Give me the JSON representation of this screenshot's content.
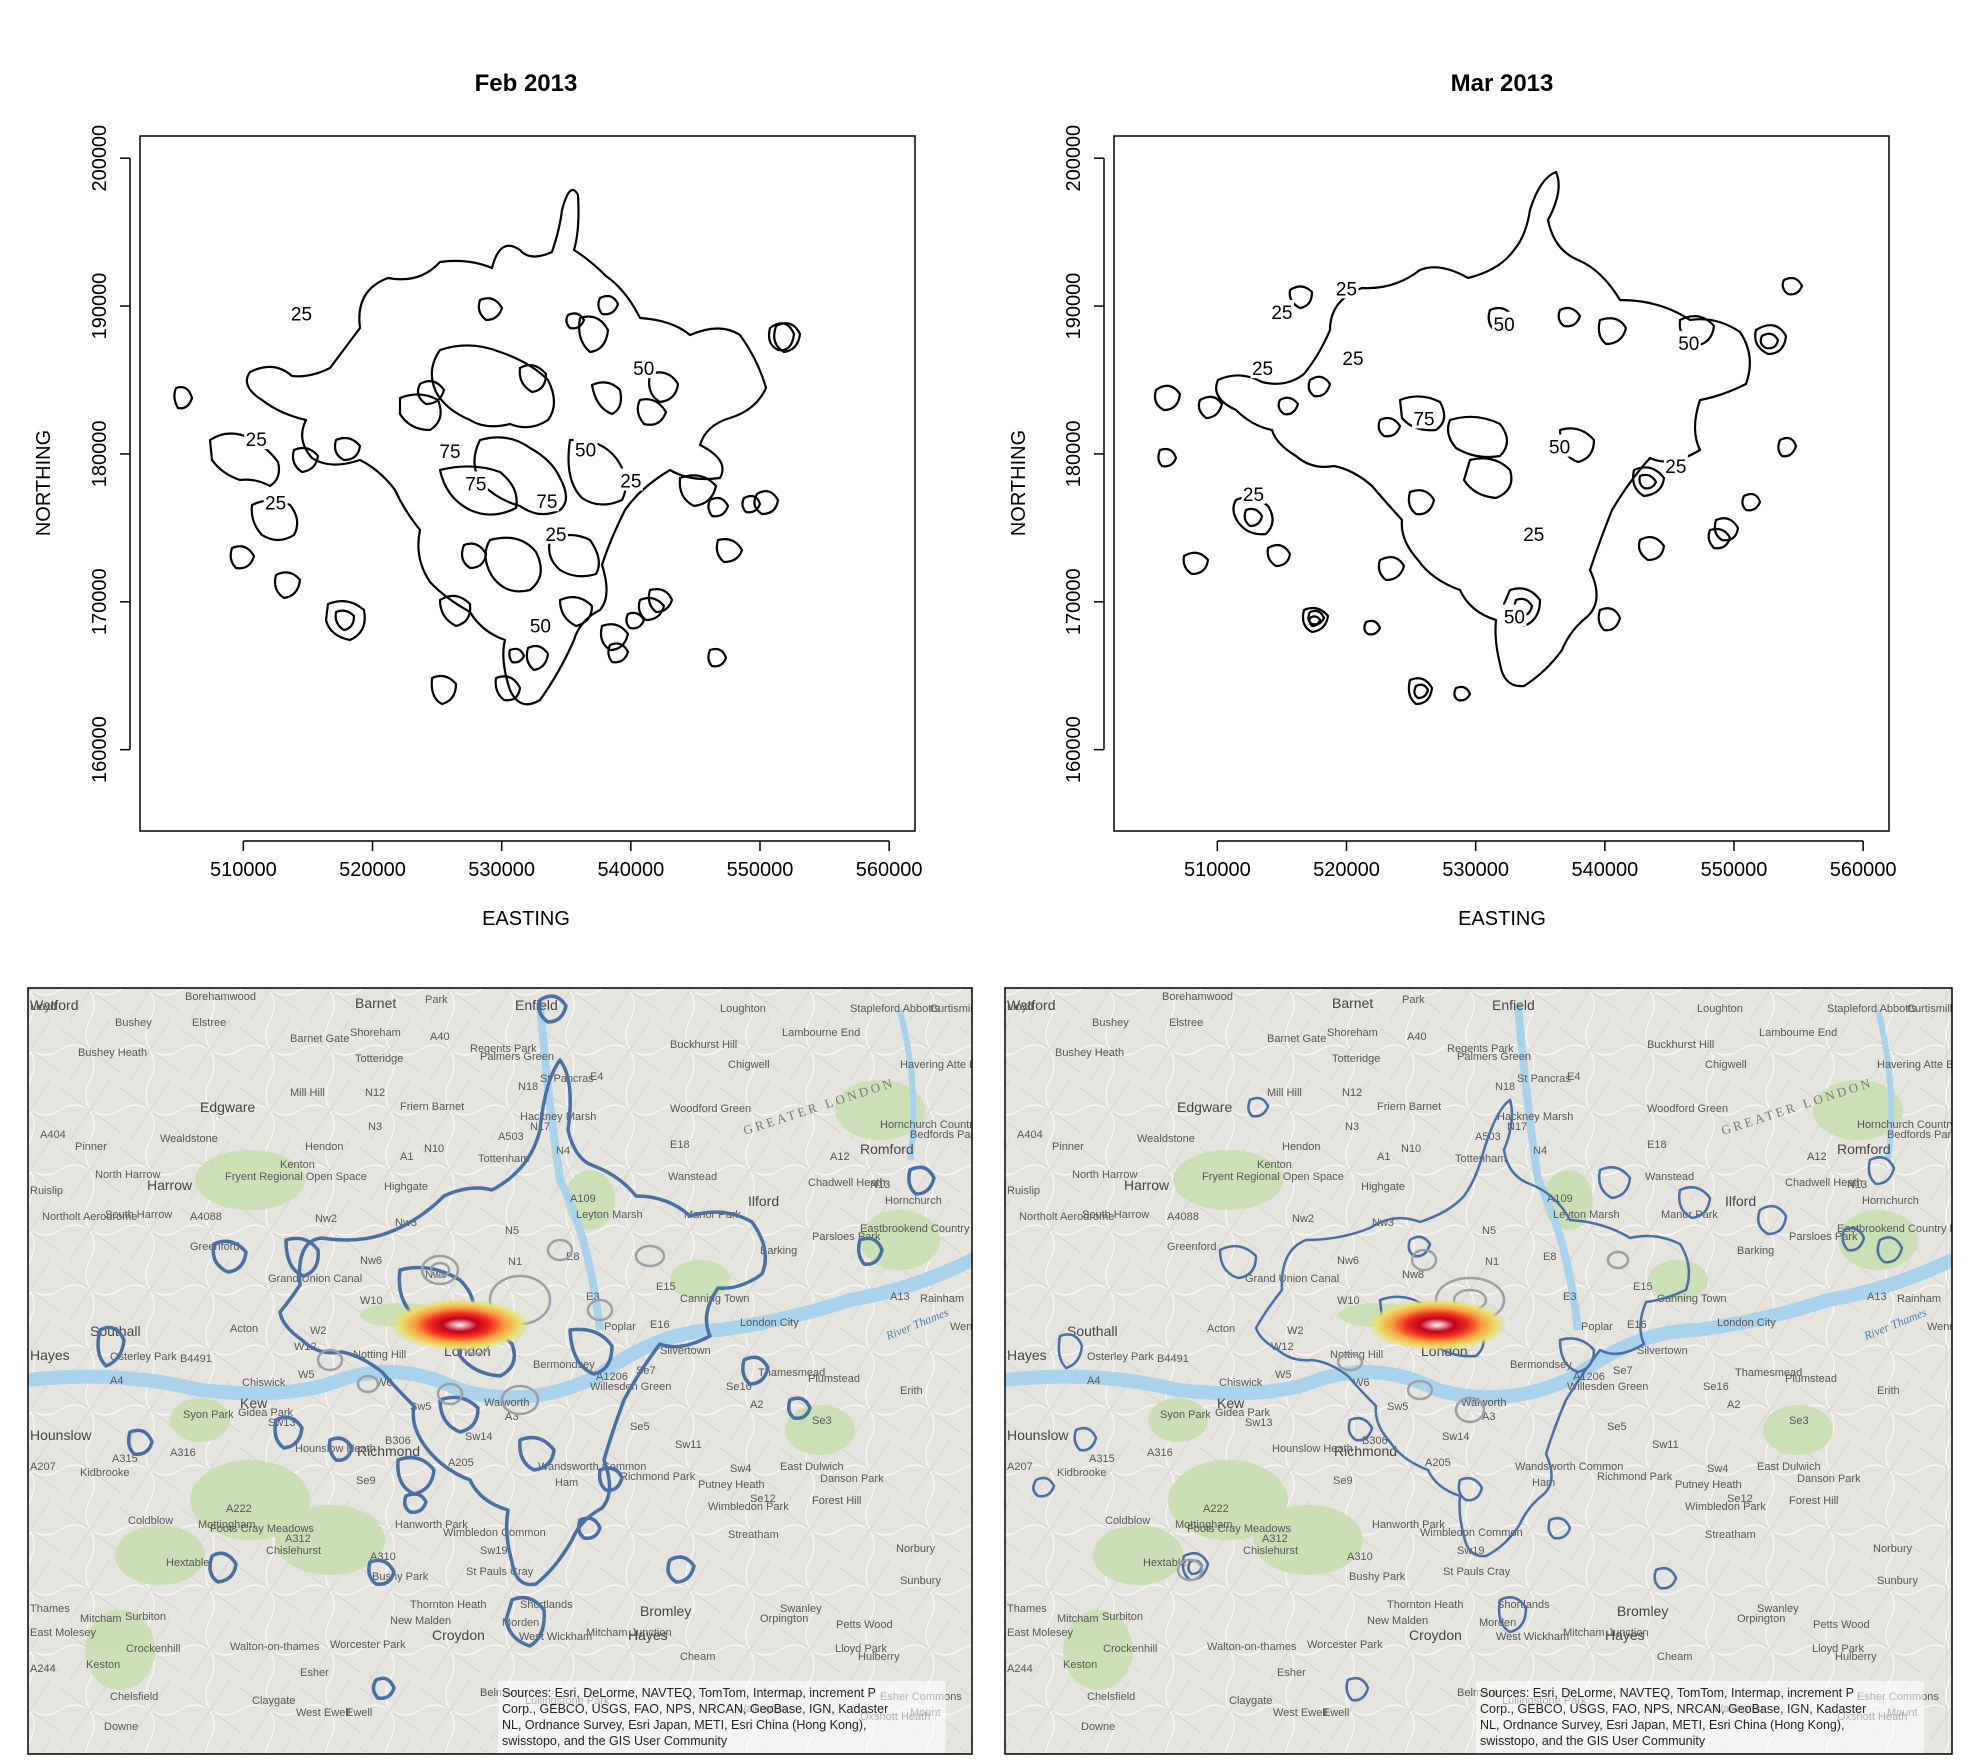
{
  "chart_data": [
    {
      "type": "contour",
      "title": "Feb 2013",
      "xlabel": "EASTING",
      "ylabel": "NORTHING",
      "xticks": [
        510000,
        520000,
        530000,
        540000,
        550000,
        560000
      ],
      "yticks": [
        160000,
        170000,
        180000,
        190000,
        200000
      ],
      "xlim": [
        502000,
        562000
      ],
      "ylim": [
        154500,
        201500
      ],
      "levels": [
        25,
        50,
        75
      ],
      "contour_labels": [
        {
          "text": "25",
          "x": 514500,
          "y": 189500
        },
        {
          "text": "25",
          "x": 511000,
          "y": 181000
        },
        {
          "text": "25",
          "x": 512500,
          "y": 176700
        },
        {
          "text": "75",
          "x": 526000,
          "y": 180200
        },
        {
          "text": "75",
          "x": 528000,
          "y": 178000
        },
        {
          "text": "50",
          "x": 536500,
          "y": 180300
        },
        {
          "text": "50",
          "x": 541000,
          "y": 185800
        },
        {
          "text": "25",
          "x": 540000,
          "y": 178200
        },
        {
          "text": "75",
          "x": 533500,
          "y": 176800
        },
        {
          "text": "25",
          "x": 534200,
          "y": 174600
        },
        {
          "text": "50",
          "x": 533000,
          "y": 168400
        }
      ]
    },
    {
      "type": "contour",
      "title": "Mar 2013",
      "xlabel": "EASTING",
      "ylabel": "NORTHING",
      "xticks": [
        510000,
        520000,
        530000,
        540000,
        550000,
        560000
      ],
      "yticks": [
        160000,
        170000,
        180000,
        190000,
        200000
      ],
      "xlim": [
        502000,
        562000
      ],
      "ylim": [
        154500,
        201500
      ],
      "levels": [
        25,
        50,
        75
      ],
      "contour_labels": [
        {
          "text": "25",
          "x": 520000,
          "y": 191200
        },
        {
          "text": "25",
          "x": 515000,
          "y": 189600
        },
        {
          "text": "50",
          "x": 532200,
          "y": 188800
        },
        {
          "text": "25",
          "x": 520500,
          "y": 186500
        },
        {
          "text": "25",
          "x": 513500,
          "y": 185800
        },
        {
          "text": "50",
          "x": 546500,
          "y": 187500
        },
        {
          "text": "75",
          "x": 526000,
          "y": 182400
        },
        {
          "text": "50",
          "x": 536500,
          "y": 180500
        },
        {
          "text": "25",
          "x": 545500,
          "y": 179200
        },
        {
          "text": "25",
          "x": 512800,
          "y": 177300
        },
        {
          "text": "25",
          "x": 534500,
          "y": 174600
        },
        {
          "text": "50",
          "x": 533000,
          "y": 169000
        }
      ]
    }
  ],
  "maps": {
    "place_labels": [
      "Watford",
      "Borehamwood",
      "Barnet",
      "Park",
      "Enfield",
      "Loughton",
      "Stapleford Abbotts",
      "Curtismill Green",
      "Bushey",
      "Elstree",
      "Barnet Gate",
      "Lambourne End",
      "Bushey Heath",
      "Totteridge",
      "Palmers Green",
      "Buckhurst Hill",
      "Chigwell",
      "Havering Atte Bower",
      "Mill Hill",
      "Friern Barnet",
      "Edgware",
      "Woodford Green",
      "N3",
      "N12",
      "N18",
      "E4",
      "N17",
      "Pinner",
      "Wealdstone",
      "Hendon",
      "N10",
      "Tottenham",
      "E18",
      "Romford",
      "A404",
      "Kenton",
      "A1",
      "A12",
      "Ruislip",
      "North Harrow",
      "Harrow",
      "Fryent Regional Open Space",
      "Highgate",
      "Wanstead",
      "Chadwell Heath",
      "Hornchurch",
      "Northolt Aerodrome",
      "South Harrow",
      "Nw2",
      "Nw3",
      "N5",
      "Manor Park",
      "Ilford",
      "A4088",
      "N1",
      "Eastbrookend Country Park",
      "Greenford",
      "Nw6",
      "Nw8",
      "E8",
      "E15",
      "Barking",
      "Parsloes Park",
      "Grand Union Canal",
      "W10",
      "E3",
      "A13",
      "Rainham",
      "Southall",
      "Acton",
      "W2",
      "Ec4",
      "E16",
      "Canning Town",
      "London City",
      "Wennington",
      "Hayes",
      "Osterley Park",
      "B4491",
      "W12",
      "Notting Hill",
      "London",
      "Poplar",
      "Silvertown",
      "Thamesmead",
      "A4",
      "Chiswick",
      "W6",
      "Bermondsey",
      "A1206",
      "Se7",
      "Plumstead",
      "Kew",
      "Sw5",
      "Walworth",
      "Se16",
      "Erith",
      "Hounslow",
      "Syon Park",
      "Sw13",
      "B306",
      "A3",
      "Se5",
      "A2",
      "Se3",
      "A207",
      "A315",
      "A316",
      "Richmond",
      "Sw14",
      "Sw11",
      "Sw4",
      "Kidbrooke",
      "Hounslow Heath",
      "A205",
      "Wandsworth Common",
      "East Dulwich",
      "Danson Park",
      "Putney Heath",
      "Se12",
      "Se9",
      "Ham",
      "Richmond Park",
      "Wimbledon Park",
      "Forest Hill",
      "Mottingham",
      "A222",
      "Coldblow",
      "Hanworth Park",
      "A312",
      "Wimbledon Common",
      "Streatham",
      "Foots Cray Meadows",
      "Chislehurst",
      "A310",
      "Sw19",
      "Norbury",
      "Hextable",
      "Bushy Park",
      "St Pauls Cray",
      "Sunbury",
      "Thames",
      "Mitcham",
      "Thornton Heath",
      "Shortlands",
      "Bromley",
      "Swanley",
      "East Molesey",
      "Surbiton",
      "New Malden",
      "Morden",
      "Mitcham Junction",
      "Petts Wood",
      "Crockenhill",
      "Walton-on-thames",
      "Worcester Park",
      "Croydon",
      "West Wickham",
      "Hayes",
      "Orpington",
      "Hulberry",
      "A244",
      "Esher",
      "Cheam",
      "Lloyd Park",
      "Keston",
      "Chelsfield",
      "Lullingstone Park",
      "Esher Commons",
      "Claygate",
      "West Ewell",
      "Ewell",
      "Belmont",
      "Wallington",
      "Downe",
      "Oxshott Heath",
      "Mount",
      "Shoreham",
      "A40",
      "Regents Park",
      "St Pancras",
      "N4",
      "A503",
      "A109",
      "Leyton Marsh",
      "Hackney Marsh",
      "N13",
      "Hornchurch Country Park",
      "Bedfords Park",
      "Gidea Park",
      "W5",
      "Willesden Green",
      "Lloyd"
    ],
    "greater_london_label": "GREATER LONDON",
    "river_label": "River Thames",
    "attribution": [
      "Sources: Esri, DeLorme, NAVTEQ, TomTom, Intermap, increment P",
      "Corp., GEBCO, USGS, FAO, NPS, NRCAN, GeoBase, IGN, Kadaster",
      "NL, Ordnance Survey, Esri Japan, METI, Esri China (Hong Kong),",
      "swisstopo, and the GIS User Community"
    ],
    "colors": {
      "contour": "#4a6fa5",
      "ring": "#9aa0a6",
      "hotspot": "#e02020",
      "river": "#a9d3ec",
      "park": "#c9dfb1",
      "base": "#e6e4df"
    }
  }
}
